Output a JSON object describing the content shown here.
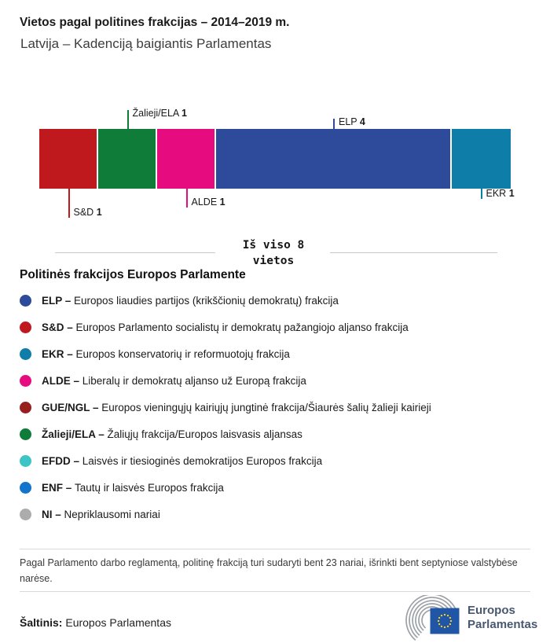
{
  "title": "Vietos pagal politines frakcijas – 2014–2019 m.",
  "subtitle": "Latvija – Kadenciją baigiantis Parlamentas",
  "chart_data": {
    "type": "bar",
    "title": "Vietos pagal politines frakcijas – 2014–2019 m.",
    "subtitle": "Latvija – Kadenciją baigiantis Parlamentas",
    "total_seats": 8,
    "total_label": "Iš viso 8 vietos",
    "total_lines": [
      "Iš viso 8",
      "vietos"
    ],
    "segments": [
      {
        "name": "S&D",
        "value": 1,
        "color": "#C0191D",
        "side": "below",
        "tick": 37
      },
      {
        "name": "Žalieji/ELA",
        "value": 1,
        "color": "#107C39",
        "side": "above",
        "tick": 24
      },
      {
        "name": "ALDE",
        "value": 1,
        "color": "#E60C80",
        "side": "below",
        "tick": 24
      },
      {
        "name": "ELP",
        "value": 4,
        "color": "#2E4A9B",
        "side": "above",
        "tick": 13
      },
      {
        "name": "EKR",
        "value": 1,
        "color": "#0E7DA7",
        "side": "below",
        "tick": 13
      }
    ]
  },
  "legend": {
    "heading": "Politinės frakcijos Europos Parlamente",
    "items": [
      {
        "abbr": "ELP –",
        "desc": "Europos liaudies partijos (krikščionių demokratų) frakcija",
        "color": "#2E4A9B"
      },
      {
        "abbr": "S&D –",
        "desc": "Europos Parlamento socialistų ir demokratų pažangiojo aljanso frakcija",
        "color": "#C0191D"
      },
      {
        "abbr": "EKR –",
        "desc": "Europos konservatorių ir reformuotojų frakcija",
        "color": "#0E7DA7"
      },
      {
        "abbr": "ALDE –",
        "desc": "Liberalų ir demokratų aljanso už Europą frakcija",
        "color": "#E60C80"
      },
      {
        "abbr": "GUE/NGL –",
        "desc": "Europos vieningųjų kairiųjų jungtinė frakcija/Šiaurės šalių žalieji kairieji",
        "color": "#97201F"
      },
      {
        "abbr": "Žalieji/ELA –",
        "desc": "Žaliųjų frakcija/Europos laisvasis aljansas",
        "color": "#107C39"
      },
      {
        "abbr": "EFDD –",
        "desc": "Laisvės ir tiesioginės demokratijos Europos frakcija",
        "color": "#3DC4C6"
      },
      {
        "abbr": "ENF –",
        "desc": "Tautų ir laisvės Europos frakcija",
        "color": "#1374CB"
      },
      {
        "abbr": "NI –",
        "desc": "Nepriklausomi nariai",
        "color": "#ACACAC"
      }
    ]
  },
  "footnote": "Pagal Parlamento darbo reglamentą, politinę frakciją turi sudaryti bent 23 nariai, išrinkti bent septyniose valstybėse narėse.",
  "source": {
    "label": "Šaltinis:",
    "text": "Europos Parlamentas"
  },
  "logo": {
    "line1": "Europos",
    "line2": "Parlamentas"
  },
  "logo_colors": {
    "arcs": "#9CA2A7",
    "flag": "#2056A5",
    "stars": "#FFD617"
  }
}
